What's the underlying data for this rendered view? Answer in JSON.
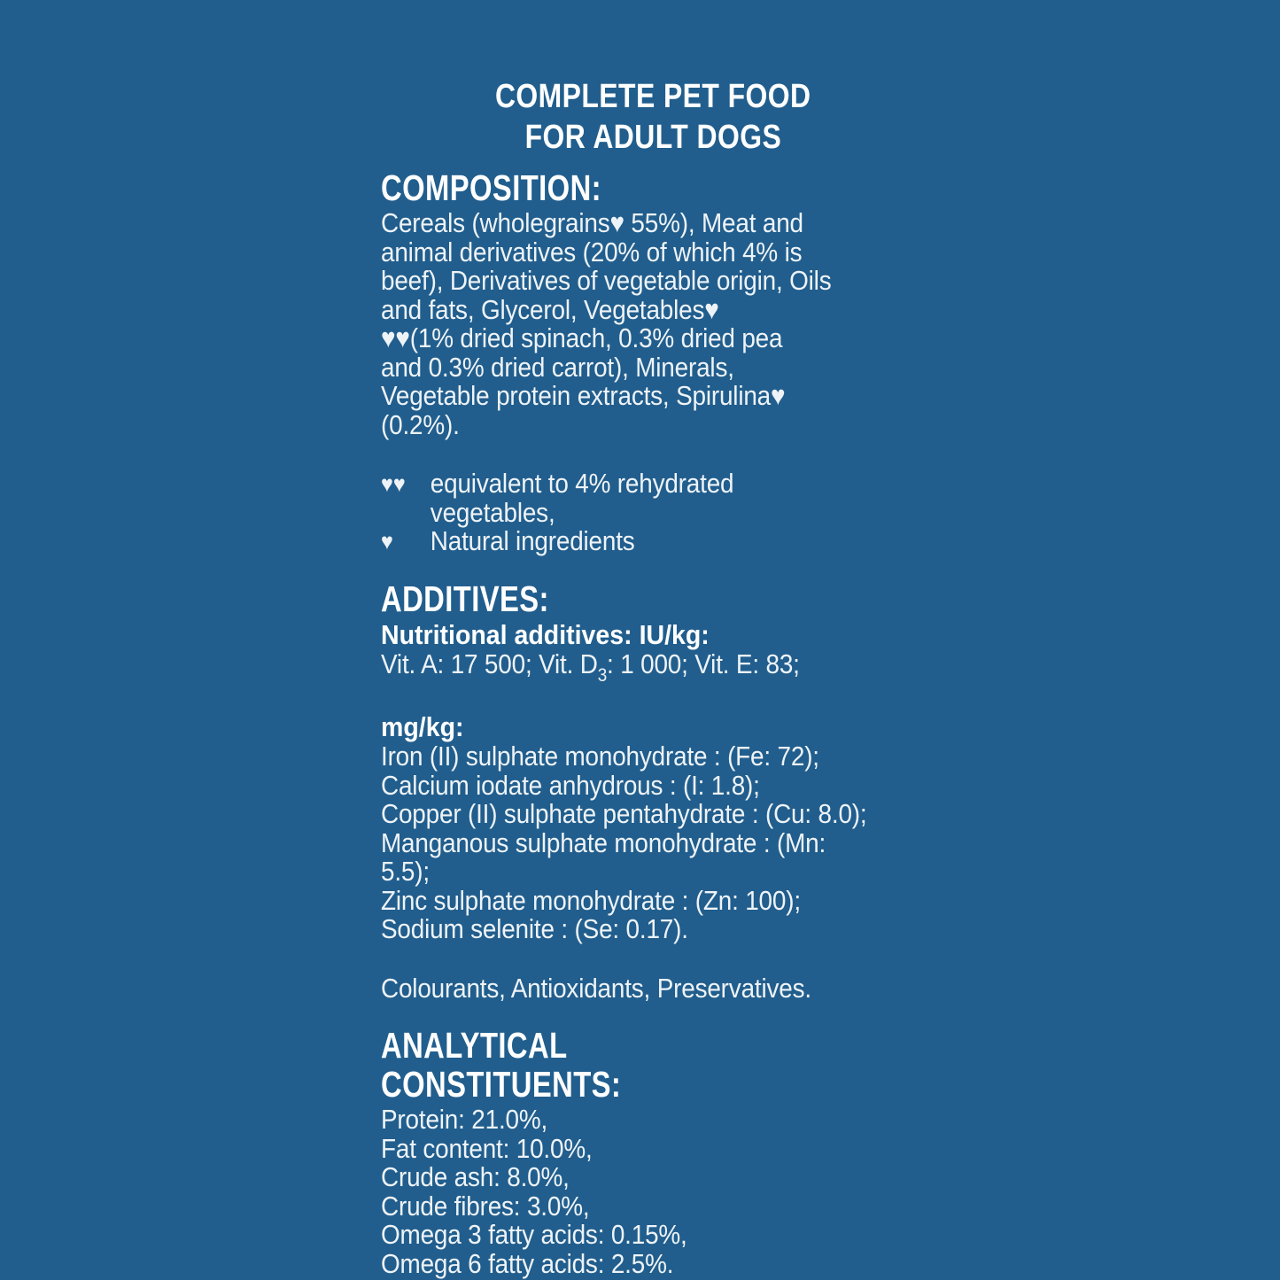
{
  "page": {
    "background_color": "#215e8d",
    "heading_color": "#ffffff",
    "body_text_color": "#eef3f7"
  },
  "title": {
    "line1": "COMPLETE PET FOOD",
    "line2": "FOR ADULT DOGS"
  },
  "composition": {
    "heading": "COMPOSITION:",
    "body": "Cereals (wholegrains♥ 55%), Meat and\nanimal derivatives (20% of which 4% is\nbeef), Derivatives of vegetable origin, Oils\nand fats, Glycerol, Vegetables♥\n♥♥(1% dried spinach, 0.3% dried pea\nand 0.3% dried carrot), Minerals,\nVegetable protein extracts, Spirulina♥\n(0.2%)."
  },
  "footnotes": {
    "double_heart": {
      "marker": "♥♥",
      "text": "equivalent to 4% rehydrated\nvegetables,"
    },
    "single_heart": {
      "marker": "♥",
      "text": "Natural ingredients"
    }
  },
  "additives": {
    "heading": "ADDITIVES:",
    "nutritional_heading": "Nutritional additives: IU/kg:",
    "vitamins": {
      "pre": "Vit. A: 17 500; Vit. D",
      "sub": "3",
      "post": ": 1 000; Vit. E: 83;"
    },
    "mgkg_heading": "mg/kg:",
    "minerals": "Iron (II) sulphate monohydrate : (Fe: 72);\nCalcium iodate anhydrous : (I: 1.8);\nCopper (II) sulphate pentahydrate : (Cu: 8.0);\nManganous sulphate monohydrate : (Mn: 5.5);\nZinc sulphate monohydrate : (Zn: 100);\nSodium selenite : (Se: 0.17).",
    "other": "Colourants, Antioxidants, Preservatives."
  },
  "analytical": {
    "heading": "ANALYTICAL\nCONSTITUENTS:",
    "values": "Protein: 21.0%,\nFat content: 10.0%,\nCrude ash: 8.0%,\nCrude fibres: 3.0%,\nOmega 3 fatty acids: 0.15%,\nOmega 6 fatty acids: 2.5%."
  }
}
